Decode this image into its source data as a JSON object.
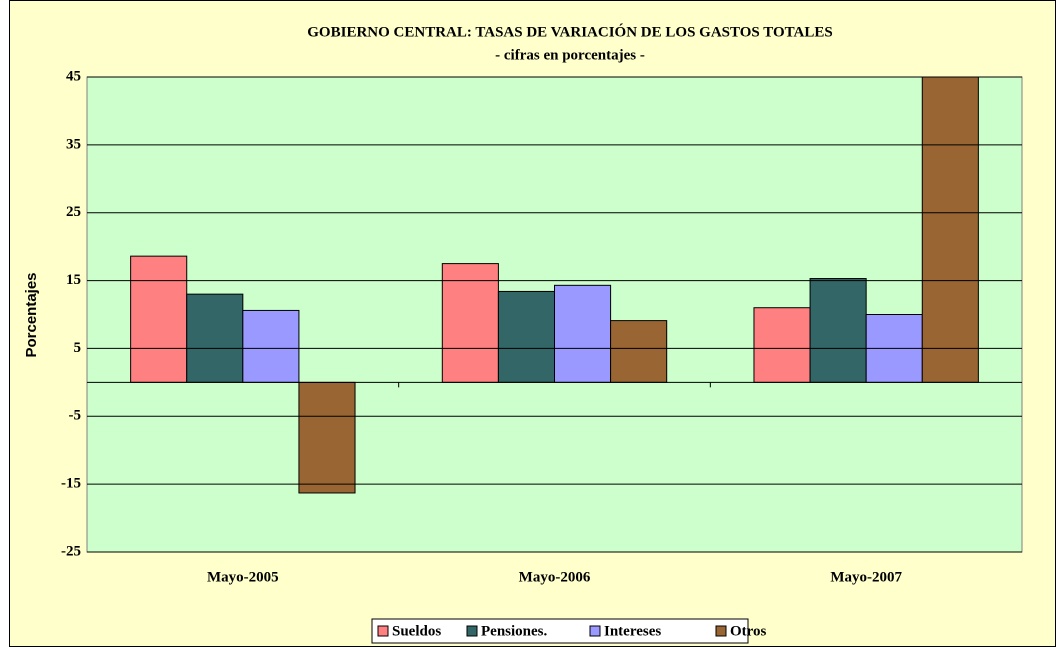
{
  "chart_data": {
    "type": "bar",
    "title": "GOBIERNO CENTRAL: TASAS DE VARIACIÓN DE LOS GASTOS TOTALES",
    "subtitle": "- cifras en porcentajes -",
    "y_label": "Porcentajes",
    "categories": [
      "Mayo-2005",
      "Mayo-2006",
      "Mayo-2007"
    ],
    "series": [
      {
        "name": "Sueldos",
        "color": "#ff8080",
        "values": [
          18.6,
          17.5,
          11.0
        ]
      },
      {
        "name": "Pensiones.",
        "color": "#336666",
        "values": [
          13.0,
          13.4,
          15.3
        ]
      },
      {
        "name": "Intereses",
        "color": "#9999ff",
        "values": [
          10.6,
          14.3,
          10.0
        ]
      },
      {
        "name": "Otros",
        "color": "#996633",
        "values": [
          -16.3,
          9.1,
          46
        ]
      }
    ],
    "ylim": [
      -25,
      45
    ],
    "yticks": [
      45,
      35,
      25,
      15,
      5,
      -5,
      -15,
      -25
    ],
    "grid": true,
    "legend": "bottom"
  }
}
